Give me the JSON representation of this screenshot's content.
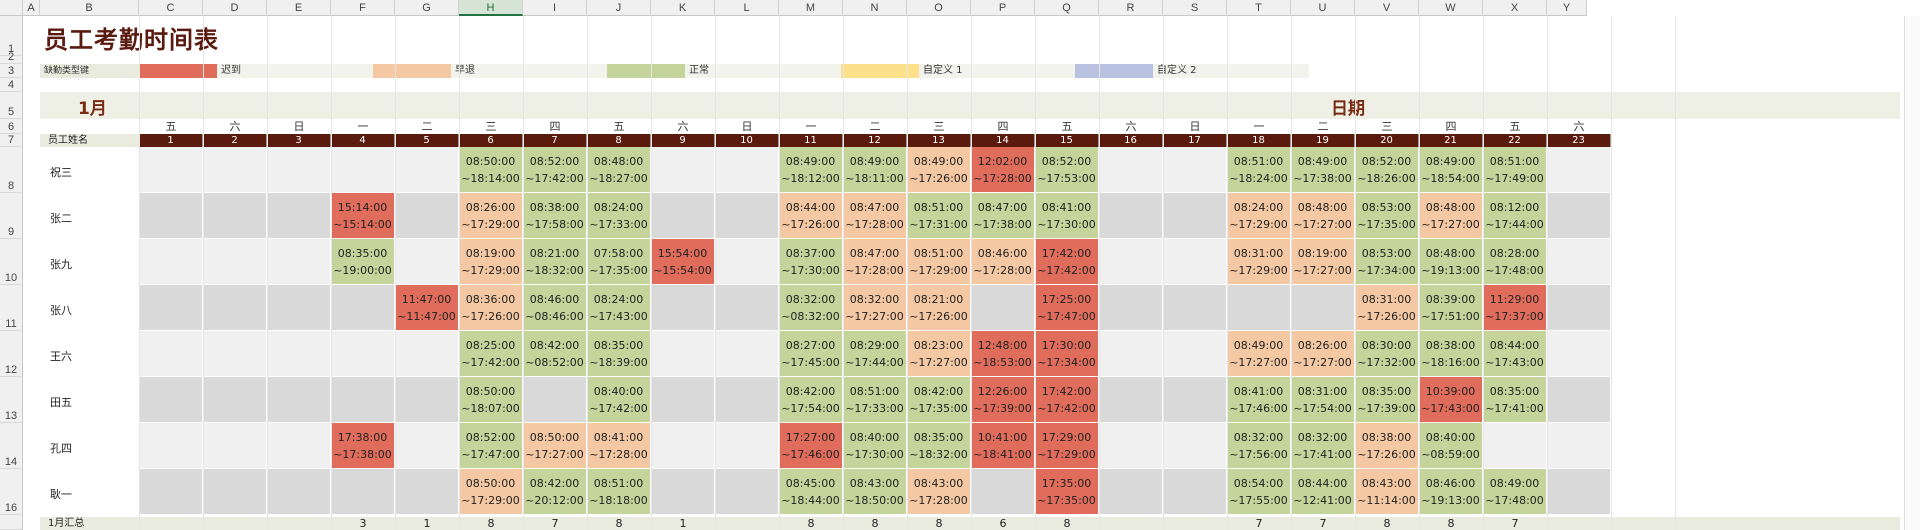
{
  "columns": [
    "A",
    "B",
    "C",
    "D",
    "E",
    "F",
    "G",
    "H",
    "I",
    "J",
    "K",
    "L",
    "M",
    "N",
    "O",
    "P",
    "Q",
    "R",
    "S",
    "T",
    "U",
    "V",
    "W",
    "X",
    "Y"
  ],
  "selected_column": "H",
  "rows": [
    "1",
    "2",
    "3",
    "4",
    "5",
    "6",
    "7",
    "8",
    "9",
    "10",
    "11",
    "12",
    "13",
    "14",
    "16"
  ],
  "title": "员工考勤时间表",
  "legend": {
    "label": "缺勤类型键",
    "items": [
      {
        "text": "迟到",
        "color": "#e06c5c"
      },
      {
        "text": "早退",
        "color": "#f5c8a4"
      },
      {
        "text": "正常",
        "color": "#c4d49a"
      },
      {
        "text": "自定义 1",
        "color": "#fde08a"
      },
      {
        "text": "自定义 2",
        "color": "#b8c2e0"
      }
    ]
  },
  "month_label": "1月",
  "date_label": "日期",
  "name_header": "员工姓名",
  "weekdays": [
    "五",
    "六",
    "日",
    "一",
    "二",
    "三",
    "四",
    "五",
    "六",
    "日",
    "一",
    "二",
    "三",
    "四",
    "五",
    "六",
    "日",
    "一",
    "二",
    "三",
    "四",
    "五",
    "六"
  ],
  "days": [
    "1",
    "2",
    "3",
    "4",
    "5",
    "6",
    "7",
    "8",
    "9",
    "10",
    "11",
    "12",
    "13",
    "14",
    "15",
    "16",
    "17",
    "18",
    "19",
    "20",
    "21",
    "22",
    "23"
  ],
  "colors": {
    "late": "#e06c5c",
    "early": "#f5c8a4",
    "normal": "#c4d49a",
    "empty_light": "#f0f0f0",
    "empty_dark": "#d9d9d9",
    "header_dark": "#5b1a0e"
  },
  "employees": [
    {
      "name": "祝三",
      "cells": [
        [
          6,
          "08:50:00",
          "~18:14:00",
          "normal"
        ],
        [
          7,
          "08:52:00",
          "~17:42:00",
          "normal"
        ],
        [
          8,
          "08:48:00",
          "~18:27:00",
          "normal"
        ],
        [
          11,
          "08:49:00",
          "~18:12:00",
          "normal"
        ],
        [
          12,
          "08:49:00",
          "~18:11:00",
          "normal"
        ],
        [
          13,
          "08:49:00",
          "~17:26:00",
          "early"
        ],
        [
          14,
          "12:02:00",
          "~17:28:00",
          "late"
        ],
        [
          15,
          "08:52:00",
          "~17:53:00",
          "normal"
        ],
        [
          18,
          "08:51:00",
          "~18:24:00",
          "normal"
        ],
        [
          19,
          "08:49:00",
          "~17:38:00",
          "normal"
        ],
        [
          20,
          "08:52:00",
          "~18:26:00",
          "normal"
        ],
        [
          21,
          "08:49:00",
          "~18:54:00",
          "normal"
        ],
        [
          22,
          "08:51:00",
          "~17:49:00",
          "normal"
        ]
      ]
    },
    {
      "name": "张二",
      "cells": [
        [
          4,
          "15:14:00",
          "~15:14:00",
          "late"
        ],
        [
          6,
          "08:26:00",
          "~17:29:00",
          "early"
        ],
        [
          7,
          "08:38:00",
          "~17:58:00",
          "normal"
        ],
        [
          8,
          "08:24:00",
          "~17:33:00",
          "normal"
        ],
        [
          11,
          "08:44:00",
          "~17:26:00",
          "early"
        ],
        [
          12,
          "08:47:00",
          "~17:28:00",
          "early"
        ],
        [
          13,
          "08:51:00",
          "~17:31:00",
          "normal"
        ],
        [
          14,
          "08:47:00",
          "~17:38:00",
          "normal"
        ],
        [
          15,
          "08:41:00",
          "~17:30:00",
          "normal"
        ],
        [
          18,
          "08:24:00",
          "~17:29:00",
          "early"
        ],
        [
          19,
          "08:48:00",
          "~17:27:00",
          "early"
        ],
        [
          20,
          "08:53:00",
          "~17:35:00",
          "normal"
        ],
        [
          21,
          "08:48:00",
          "~17:27:00",
          "early"
        ],
        [
          22,
          "08:12:00",
          "~17:44:00",
          "normal"
        ]
      ]
    },
    {
      "name": "张九",
      "cells": [
        [
          4,
          "08:35:00",
          "~19:00:00",
          "normal"
        ],
        [
          6,
          "08:19:00",
          "~17:29:00",
          "early"
        ],
        [
          7,
          "08:21:00",
          "~18:32:00",
          "normal"
        ],
        [
          8,
          "07:58:00",
          "~17:35:00",
          "normal"
        ],
        [
          9,
          "15:54:00",
          "~15:54:00",
          "late"
        ],
        [
          11,
          "08:37:00",
          "~17:30:00",
          "normal"
        ],
        [
          12,
          "08:47:00",
          "~17:28:00",
          "early"
        ],
        [
          13,
          "08:51:00",
          "~17:29:00",
          "early"
        ],
        [
          14,
          "08:46:00",
          "~17:28:00",
          "early"
        ],
        [
          15,
          "17:42:00",
          "~17:42:00",
          "late"
        ],
        [
          18,
          "08:31:00",
          "~17:29:00",
          "early"
        ],
        [
          19,
          "08:19:00",
          "~17:27:00",
          "early"
        ],
        [
          20,
          "08:53:00",
          "~17:34:00",
          "normal"
        ],
        [
          21,
          "08:48:00",
          "~19:13:00",
          "normal"
        ],
        [
          22,
          "08:28:00",
          "~17:48:00",
          "normal"
        ]
      ]
    },
    {
      "name": "张八",
      "cells": [
        [
          5,
          "11:47:00",
          "~11:47:00",
          "late"
        ],
        [
          6,
          "08:36:00",
          "~17:26:00",
          "early"
        ],
        [
          7,
          "08:46:00",
          "~08:46:00",
          "normal"
        ],
        [
          8,
          "08:24:00",
          "~17:43:00",
          "normal"
        ],
        [
          11,
          "08:32:00",
          "~08:32:00",
          "normal"
        ],
        [
          12,
          "08:32:00",
          "~17:27:00",
          "early"
        ],
        [
          13,
          "08:21:00",
          "~17:26:00",
          "early"
        ],
        [
          15,
          "17:25:00",
          "~17:47:00",
          "late"
        ],
        [
          20,
          "08:31:00",
          "~17:26:00",
          "early"
        ],
        [
          21,
          "08:39:00",
          "~17:51:00",
          "normal"
        ],
        [
          22,
          "11:29:00",
          "~17:37:00",
          "late"
        ]
      ]
    },
    {
      "name": "王六",
      "cells": [
        [
          6,
          "08:25:00",
          "~17:42:00",
          "normal"
        ],
        [
          7,
          "08:42:00",
          "~08:52:00",
          "normal"
        ],
        [
          8,
          "08:35:00",
          "~18:39:00",
          "normal"
        ],
        [
          11,
          "08:27:00",
          "~17:45:00",
          "normal"
        ],
        [
          12,
          "08:29:00",
          "~17:44:00",
          "normal"
        ],
        [
          13,
          "08:23:00",
          "~17:27:00",
          "early"
        ],
        [
          14,
          "12:48:00",
          "~18:53:00",
          "late"
        ],
        [
          15,
          "17:30:00",
          "~17:34:00",
          "late"
        ],
        [
          18,
          "08:49:00",
          "~17:27:00",
          "early"
        ],
        [
          19,
          "08:26:00",
          "~17:27:00",
          "early"
        ],
        [
          20,
          "08:30:00",
          "~17:32:00",
          "normal"
        ],
        [
          21,
          "08:38:00",
          "~18:16:00",
          "normal"
        ],
        [
          22,
          "08:44:00",
          "~17:43:00",
          "normal"
        ]
      ]
    },
    {
      "name": "田五",
      "cells": [
        [
          6,
          "08:50:00",
          "~18:07:00",
          "normal"
        ],
        [
          8,
          "08:40:00",
          "~17:42:00",
          "normal"
        ],
        [
          11,
          "08:42:00",
          "~17:54:00",
          "normal"
        ],
        [
          12,
          "08:51:00",
          "~17:33:00",
          "normal"
        ],
        [
          13,
          "08:42:00",
          "~17:35:00",
          "normal"
        ],
        [
          14,
          "12:26:00",
          "~17:39:00",
          "late"
        ],
        [
          15,
          "17:42:00",
          "~17:42:00",
          "late"
        ],
        [
          18,
          "08:41:00",
          "~17:46:00",
          "normal"
        ],
        [
          19,
          "08:31:00",
          "~17:54:00",
          "normal"
        ],
        [
          20,
          "08:35:00",
          "~17:39:00",
          "normal"
        ],
        [
          21,
          "10:39:00",
          "~17:43:00",
          "late"
        ],
        [
          22,
          "08:35:00",
          "~17:41:00",
          "normal"
        ]
      ]
    },
    {
      "name": "孔四",
      "cells": [
        [
          4,
          "17:38:00",
          "~17:38:00",
          "late"
        ],
        [
          6,
          "08:52:00",
          "~17:47:00",
          "normal"
        ],
        [
          7,
          "08:50:00",
          "~17:27:00",
          "early"
        ],
        [
          8,
          "08:41:00",
          "~17:28:00",
          "early"
        ],
        [
          11,
          "17:27:00",
          "~17:46:00",
          "late"
        ],
        [
          12,
          "08:40:00",
          "~17:30:00",
          "normal"
        ],
        [
          13,
          "08:35:00",
          "~18:32:00",
          "normal"
        ],
        [
          14,
          "10:41:00",
          "~18:41:00",
          "late"
        ],
        [
          15,
          "17:29:00",
          "~17:29:00",
          "late"
        ],
        [
          18,
          "08:32:00",
          "~17:56:00",
          "normal"
        ],
        [
          19,
          "08:32:00",
          "~17:41:00",
          "normal"
        ],
        [
          20,
          "08:38:00",
          "~17:26:00",
          "early"
        ],
        [
          21,
          "08:40:00",
          "~08:59:00",
          "normal"
        ]
      ]
    },
    {
      "name": "耿一",
      "cells": [
        [
          6,
          "08:50:00",
          "~17:29:00",
          "early"
        ],
        [
          7,
          "08:42:00",
          "~20:12:00",
          "normal"
        ],
        [
          8,
          "08:51:00",
          "~18:18:00",
          "normal"
        ],
        [
          11,
          "08:45:00",
          "~18:44:00",
          "normal"
        ],
        [
          12,
          "08:43:00",
          "~18:50:00",
          "normal"
        ],
        [
          13,
          "08:43:00",
          "~17:28:00",
          "early"
        ],
        [
          15,
          "17:35:00",
          "~17:35:00",
          "late"
        ],
        [
          18,
          "08:54:00",
          "~17:55:00",
          "normal"
        ],
        [
          19,
          "08:44:00",
          "~12:41:00",
          "normal"
        ],
        [
          20,
          "08:43:00",
          "~11:14:00",
          "early"
        ],
        [
          21,
          "08:46:00",
          "~19:13:00",
          "normal"
        ],
        [
          22,
          "08:49:00",
          "~17:48:00",
          "normal"
        ]
      ]
    }
  ],
  "summary": {
    "label": "1月汇总",
    "values": [
      [
        "4",
        "3"
      ],
      [
        "5",
        "1"
      ],
      [
        "6",
        "8"
      ],
      [
        "7",
        "7"
      ],
      [
        "8",
        "8"
      ],
      [
        "9",
        "1"
      ],
      [
        "11",
        "8"
      ],
      [
        "12",
        "8"
      ],
      [
        "13",
        "8"
      ],
      [
        "14",
        "6"
      ],
      [
        "15",
        "8"
      ],
      [
        "18",
        "7"
      ],
      [
        "19",
        "7"
      ],
      [
        "20",
        "8"
      ],
      [
        "21",
        "8"
      ],
      [
        "22",
        "7"
      ]
    ]
  }
}
